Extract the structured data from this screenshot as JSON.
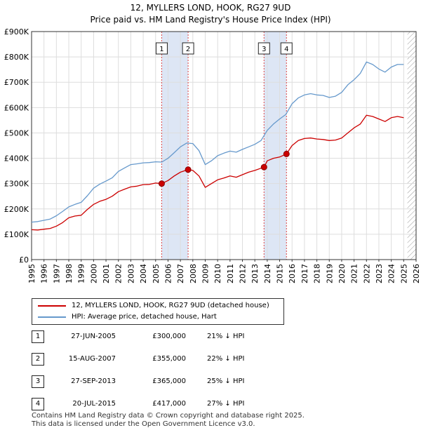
{
  "chart_data": {
    "type": "line",
    "title": "12, MYLLERS LOND, HOOK, RG27 9UD",
    "subtitle": "Price paid vs. HM Land Registry's House Price Index (HPI)",
    "xlabel": "",
    "ylabel": "",
    "xlim": [
      1995,
      2026
    ],
    "ylim": [
      0,
      900000
    ],
    "y_ticks": [
      {
        "value": 0,
        "label": "£0"
      },
      {
        "value": 100000,
        "label": "£100K"
      },
      {
        "value": 200000,
        "label": "£200K"
      },
      {
        "value": 300000,
        "label": "£300K"
      },
      {
        "value": 400000,
        "label": "£400K"
      },
      {
        "value": 500000,
        "label": "£500K"
      },
      {
        "value": 600000,
        "label": "£600K"
      },
      {
        "value": 700000,
        "label": "£700K"
      },
      {
        "value": 800000,
        "label": "£800K"
      },
      {
        "value": 900000,
        "label": "£900K"
      }
    ],
    "x_ticks": [
      "1995",
      "1996",
      "1997",
      "1998",
      "1999",
      "2000",
      "2001",
      "2002",
      "2003",
      "2004",
      "2005",
      "2006",
      "2007",
      "2008",
      "2009",
      "2010",
      "2011",
      "2012",
      "2013",
      "2014",
      "2015",
      "2016",
      "2017",
      "2018",
      "2019",
      "2020",
      "2021",
      "2022",
      "2023",
      "2024",
      "2025",
      "2026"
    ],
    "grid": true,
    "legend_position": "below",
    "colors": {
      "property": "#cc0000",
      "hpi": "#6699cc",
      "shade": "#dde6f5",
      "vline": "#dd4444",
      "hatch": "#999999"
    },
    "series": [
      {
        "name": "12, MYLLERS LOND, HOOK, RG27 9UD (detached house)",
        "x": [
          1995.0,
          1995.5,
          1996.0,
          1996.5,
          1997.0,
          1997.5,
          1998.0,
          1998.5,
          1999.0,
          1999.5,
          2000.0,
          2000.5,
          2001.0,
          2001.5,
          2002.0,
          2002.5,
          2003.0,
          2003.5,
          2004.0,
          2004.5,
          2005.0,
          2005.49,
          2006.0,
          2006.5,
          2007.0,
          2007.62,
          2008.0,
          2008.5,
          2009.0,
          2009.5,
          2010.0,
          2010.5,
          2011.0,
          2011.5,
          2012.0,
          2012.5,
          2013.0,
          2013.74,
          2014.0,
          2014.5,
          2015.0,
          2015.55,
          2016.0,
          2016.5,
          2017.0,
          2017.5,
          2018.0,
          2018.5,
          2019.0,
          2019.5,
          2020.0,
          2020.5,
          2021.0,
          2021.5,
          2022.0,
          2022.5,
          2023.0,
          2023.5,
          2024.0,
          2024.5,
          2025.0
        ],
        "values": [
          118000,
          117000,
          120000,
          123000,
          132000,
          146000,
          165000,
          172000,
          175000,
          198000,
          218000,
          230000,
          238000,
          250000,
          268000,
          278000,
          287000,
          290000,
          296000,
          297000,
          302000,
          300000,
          312000,
          330000,
          345000,
          355000,
          352000,
          330000,
          285000,
          300000,
          315000,
          322000,
          330000,
          325000,
          335000,
          345000,
          352000,
          365000,
          390000,
          400000,
          405000,
          417000,
          450000,
          470000,
          478000,
          480000,
          476000,
          474000,
          470000,
          472000,
          480000,
          500000,
          520000,
          535000,
          570000,
          565000,
          555000,
          545000,
          560000,
          565000,
          560000
        ]
      },
      {
        "name": "HPI: Average price, detached house, Hart",
        "x": [
          1995.0,
          1995.5,
          1996.0,
          1996.5,
          1997.0,
          1997.5,
          1998.0,
          1998.5,
          1999.0,
          1999.5,
          2000.0,
          2000.5,
          2001.0,
          2001.5,
          2002.0,
          2002.5,
          2003.0,
          2003.5,
          2004.0,
          2004.5,
          2005.0,
          2005.5,
          2006.0,
          2006.5,
          2007.0,
          2007.5,
          2008.0,
          2008.5,
          2009.0,
          2009.5,
          2010.0,
          2010.5,
          2011.0,
          2011.5,
          2012.0,
          2012.5,
          2013.0,
          2013.5,
          2014.0,
          2014.5,
          2015.0,
          2015.5,
          2016.0,
          2016.5,
          2017.0,
          2017.5,
          2018.0,
          2018.5,
          2019.0,
          2019.5,
          2020.0,
          2020.5,
          2021.0,
          2021.5,
          2022.0,
          2022.5,
          2023.0,
          2023.5,
          2024.0,
          2024.5,
          2025.0
        ],
        "values": [
          148000,
          150000,
          155000,
          160000,
          173000,
          190000,
          208000,
          218000,
          226000,
          252000,
          282000,
          298000,
          310000,
          323000,
          348000,
          362000,
          375000,
          378000,
          382000,
          383000,
          386000,
          385000,
          400000,
          422000,
          445000,
          460000,
          458000,
          430000,
          375000,
          390000,
          410000,
          420000,
          428000,
          424000,
          435000,
          445000,
          455000,
          470000,
          510000,
          535000,
          555000,
          573000,
          615000,
          638000,
          650000,
          655000,
          650000,
          648000,
          640000,
          645000,
          660000,
          690000,
          710000,
          735000,
          780000,
          770000,
          752000,
          740000,
          760000,
          770000,
          770000
        ]
      }
    ],
    "sales": [
      {
        "num": "1",
        "x": 2005.49,
        "value": 300000
      },
      {
        "num": "2",
        "x": 2007.62,
        "value": 355000
      },
      {
        "num": "3",
        "x": 2013.74,
        "value": 365000
      },
      {
        "num": "4",
        "x": 2015.55,
        "value": 417000
      }
    ],
    "shaded_spans": [
      [
        2005.49,
        2007.62
      ],
      [
        2013.74,
        2015.55
      ]
    ],
    "hatch_from": 2025.3
  },
  "legend": {
    "property_label": "12, MYLLERS LOND, HOOK, RG27 9UD (detached house)",
    "hpi_label": "HPI: Average price, detached house, Hart"
  },
  "table": {
    "rows": [
      {
        "num": "1",
        "date": "27-JUN-2005",
        "price": "£300,000",
        "hpi": "21% ↓ HPI"
      },
      {
        "num": "2",
        "date": "15-AUG-2007",
        "price": "£355,000",
        "hpi": "22% ↓ HPI"
      },
      {
        "num": "3",
        "date": "27-SEP-2013",
        "price": "£365,000",
        "hpi": "25% ↓ HPI"
      },
      {
        "num": "4",
        "date": "20-JUL-2015",
        "price": "£417,000",
        "hpi": "27% ↓ HPI"
      }
    ]
  },
  "footer": {
    "line1": "Contains HM Land Registry data © Crown copyright and database right 2025.",
    "line2": "This data is licensed under the Open Government Licence v3.0."
  }
}
